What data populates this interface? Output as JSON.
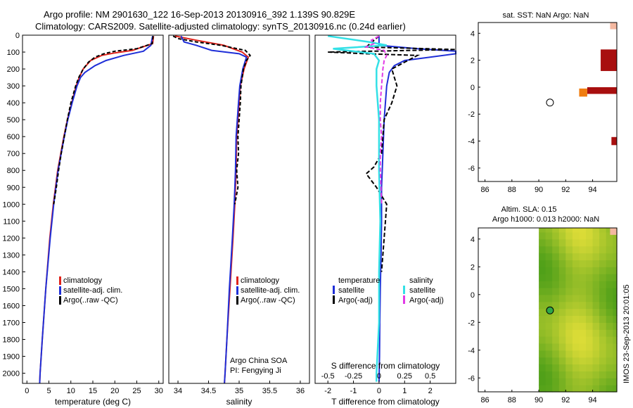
{
  "header": {
    "line1": "Argo profile: NM 2901630_122 16-Sep-2013 20130916_392 1.139S 90.829E",
    "line2": "Climatology: CARS2009. Satellite-adjusted climatology: synTS_20130916.nc (0.24d earlier)"
  },
  "side_stamp": "IMOS 23-Sep-2013 20:01:05",
  "colors": {
    "climatology": "#e0231b",
    "satellite": "#1f2fd8",
    "argo": "#000000",
    "salinity_sat": "#33e0e6",
    "salinity_argo": "#e23ae6",
    "orange": "#f07d10",
    "darkred": "#a80f0f"
  },
  "chart_data": [
    {
      "id": "temperature",
      "type": "line",
      "xlabel": "temperature (deg C)",
      "ylabel": "",
      "xlim": [
        -1,
        31
      ],
      "ylim": [
        2060,
        0
      ],
      "xticks": [
        0,
        5,
        10,
        15,
        20,
        25,
        30
      ],
      "yticks": [
        0,
        100,
        200,
        300,
        400,
        500,
        600,
        700,
        800,
        900,
        1000,
        1100,
        1200,
        1300,
        1400,
        1500,
        1600,
        1700,
        1800,
        1900,
        2000
      ],
      "legend": [
        "climatology",
        "satellite-adj. clim.",
        "Argo(..raw -QC)"
      ],
      "series": [
        {
          "name": "climatology",
          "depth": [
            5,
            50,
            90,
            105,
            120,
            150,
            200,
            250,
            300,
            400,
            500,
            600,
            800,
            1000,
            1200,
            1500,
            1800,
            2000,
            2060
          ],
          "values": [
            28.8,
            28.6,
            24,
            20,
            17,
            14.5,
            12.8,
            11.9,
            11.2,
            10.2,
            9.2,
            8.4,
            7.0,
            6.0,
            5.2,
            4.3,
            3.5,
            3.0,
            2.9
          ]
        },
        {
          "name": "satellite-adj. clim.",
          "depth": [
            5,
            60,
            95,
            120,
            150,
            180,
            220,
            250,
            300,
            400,
            500,
            600,
            800,
            1000,
            1200,
            1500,
            1800,
            2000,
            2060
          ],
          "values": [
            28.6,
            28.2,
            26.5,
            22,
            18,
            15.5,
            13.2,
            12.2,
            11.4,
            10.3,
            9.3,
            8.5,
            7.1,
            6.1,
            5.3,
            4.3,
            3.5,
            3.0,
            2.9
          ]
        },
        {
          "name": "Argo(..raw -QC)",
          "depth": [
            5,
            50,
            80,
            95,
            110,
            130,
            160,
            200,
            250,
            300,
            400,
            500,
            600,
            700,
            800,
            900,
            1000
          ],
          "values": [
            28.7,
            28.5,
            25,
            20,
            17.5,
            15.5,
            14,
            12.8,
            11.8,
            11.1,
            10.0,
            9.2,
            8.5,
            7.8,
            7.2,
            6.7,
            6.1
          ]
        }
      ]
    },
    {
      "id": "salinity",
      "type": "line",
      "xlabel": "salinity",
      "ylabel": "",
      "xlim": [
        33.85,
        36.15
      ],
      "ylim": [
        2060,
        0
      ],
      "xticks": [
        34,
        34.5,
        35,
        35.5,
        36
      ],
      "legend": [
        "climatology",
        "satellite-adj. clim.",
        "Argo(..raw -QC)"
      ],
      "annotations": [
        "Argo China SOA",
        "PI: Fengying Ji"
      ],
      "series": [
        {
          "name": "climatology",
          "depth": [
            5,
            30,
            60,
            100,
            130,
            200,
            300,
            400,
            500,
            600,
            800,
            1000,
            1200,
            1500,
            1800,
            2000,
            2060
          ],
          "values": [
            33.95,
            34.3,
            34.75,
            35.05,
            35.15,
            35.08,
            35.02,
            35.0,
            34.98,
            34.96,
            34.95,
            34.93,
            34.9,
            34.85,
            34.8,
            34.77,
            34.76
          ]
        },
        {
          "name": "satellite-adj. clim.",
          "depth": [
            5,
            40,
            60,
            90,
            110,
            130,
            200,
            300,
            400,
            500,
            600,
            800,
            1000,
            1200,
            1500,
            1800,
            2000,
            2060
          ],
          "values": [
            34.05,
            34.1,
            34.3,
            34.55,
            35.0,
            35.12,
            35.06,
            35.01,
            34.99,
            34.97,
            34.95,
            34.94,
            34.92,
            34.89,
            34.84,
            34.8,
            34.77,
            34.76
          ]
        },
        {
          "name": "Argo(..raw -QC)",
          "depth": [
            5,
            20,
            40,
            60,
            90,
            120,
            150,
            200,
            300,
            400,
            500,
            600,
            700,
            800,
            900,
            1000
          ],
          "values": [
            33.92,
            34.0,
            34.3,
            34.7,
            35.1,
            35.18,
            35.12,
            35.07,
            35.03,
            35.02,
            35.0,
            34.98,
            34.99,
            34.96,
            34.98,
            34.93
          ]
        }
      ]
    },
    {
      "id": "difference",
      "type": "line",
      "xlabel": "T difference from climatology",
      "xlabel_top": "S difference from climatology",
      "xlim": [
        -2.5,
        3.0
      ],
      "ylim": [
        2060,
        0
      ],
      "xticks": [
        -2,
        -1,
        0,
        1,
        2
      ],
      "xticks_s_labels": [
        "-0.5",
        "-0.25",
        "0",
        "0.25",
        "0.5"
      ],
      "xticks_s_positions": [
        -2,
        -1,
        0,
        1,
        2
      ],
      "legend_groups": [
        "temperature",
        "salinity"
      ],
      "legend": [
        "satellite",
        "Argo(-adj)",
        "satellite",
        "Argo(-adj)"
      ],
      "series": [
        {
          "name": "T satellite",
          "depth": [
            5,
            60,
            80,
            95,
            110,
            130,
            150,
            180,
            220,
            300,
            500,
            700,
            900,
            1100,
            1300,
            1500,
            1700,
            1900,
            2050
          ],
          "values": [
            0,
            0,
            1.5,
            3.0,
            3.0,
            2.0,
            1.0,
            0.6,
            0.4,
            0.3,
            0.2,
            0.15,
            0.1,
            0.1,
            0.08,
            0.05,
            0.03,
            0.02,
            0
          ]
        },
        {
          "name": "T Argo(-adj)",
          "depth": [
            5,
            70,
            85,
            100,
            110,
            120,
            160,
            200,
            250,
            300,
            400,
            500,
            700,
            780,
            820,
            900,
            1000,
            1200,
            1400
          ],
          "values": [
            0,
            -0.5,
            3.0,
            -2.0,
            -0.5,
            1.5,
            1.0,
            0.5,
            0.6,
            0.7,
            0.5,
            0.2,
            0.1,
            -0.2,
            -0.5,
            -0.1,
            0.3,
            0.2,
            0.1
          ]
        },
        {
          "name": "S satellite",
          "depth": [
            5,
            40,
            60,
            80,
            110,
            150,
            200,
            300,
            500,
            800,
            1100,
            1400,
            1700,
            2000,
            2050
          ],
          "values": [
            -2.0,
            -0.4,
            0.3,
            -1.8,
            -0.2,
            0,
            -0.1,
            -0.1,
            0,
            0,
            0.05,
            0,
            0,
            -0.1,
            -0.1
          ]
        },
        {
          "name": "S Argo(-adj)",
          "depth": [
            5,
            30,
            50,
            70,
            90,
            120,
            150,
            200,
            300,
            400,
            500,
            600,
            700,
            800,
            1000
          ],
          "values": [
            0,
            -0.3,
            -0.2,
            -0.5,
            0.2,
            0.3,
            0.2,
            0.15,
            0.1,
            0.05,
            0.05,
            0.1,
            0.05,
            0.05,
            0.1
          ]
        }
      ]
    },
    {
      "id": "sst_map",
      "type": "heatmap",
      "title": "sat. SST: NaN Argo: NaN",
      "xlim": [
        85.5,
        95.8
      ],
      "ylim": [
        -7,
        4.8
      ],
      "xticks": [
        86,
        88,
        90,
        92,
        94
      ],
      "yticks": [
        4,
        2,
        0,
        -2,
        -4,
        -6
      ],
      "marker": {
        "lon": 90.83,
        "lat": -1.14
      }
    },
    {
      "id": "sla_map",
      "type": "heatmap",
      "title_line1": "Altim. SLA: 0.15",
      "title_line2": "Argo h1000: 0.013 h2000: NaN",
      "xlim": [
        85.5,
        95.8
      ],
      "ylim": [
        -7,
        4.8
      ],
      "xticks": [
        86,
        88,
        90,
        92,
        94
      ],
      "yticks": [
        4,
        2,
        0,
        -2,
        -4,
        -6
      ],
      "marker": {
        "lon": 90.83,
        "lat": -1.14
      }
    }
  ]
}
